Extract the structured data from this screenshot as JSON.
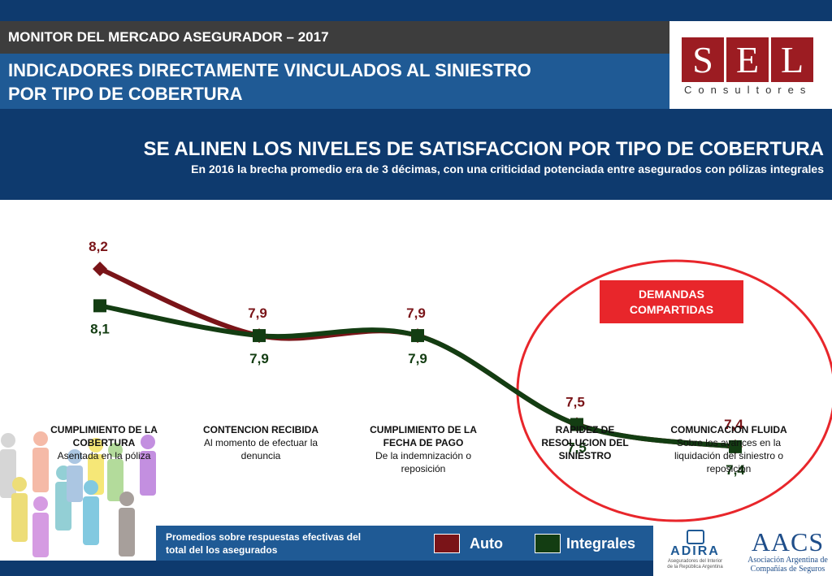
{
  "header": {
    "top_title": "MONITOR DEL MERCADO ASEGURADOR – 2017",
    "main_title_line1": "INDICADORES DIRECTAMENTE VINCULADOS AL SINIESTRO",
    "main_title_line2": "POR TIPO DE COBERTURA"
  },
  "logo": {
    "letters": [
      "S",
      "E",
      "L"
    ],
    "subtitle": "Consultores"
  },
  "band": {
    "title": "SE ALINEN LOS NIVELES DE SATISFACCION POR TIPO DE COBERTURA",
    "subtitle": "En 2016 la brecha promedio era de 3 décimas, con una criticidad potenciada entre asegurados con pólizas integrales"
  },
  "categories": [
    {
      "title": "CUMPLIMIENTO DE LA COBERTURA",
      "subtitle": "Asentada en la póliza"
    },
    {
      "title": "CONTENCION RECIBIDA",
      "subtitle": "Al momento de efectuar la denuncia"
    },
    {
      "title": "CUMPLIMIENTO DE LA FECHA DE PAGO",
      "subtitle": "De la indemnización o reposición"
    },
    {
      "title": "RAPIDEZ DE RESOLUCION DEL SINIESTRO",
      "subtitle": ""
    },
    {
      "title": "COMUNICACION FLUIDA",
      "subtitle": "Sobre los avances en la liquidación del siniestro o reposición"
    }
  ],
  "callout": {
    "line1": "DEMANDAS",
    "line2": "COMPARTIDAS"
  },
  "footer": {
    "note": "Promedios sobre respuestas efectivas del total del los asegurados",
    "legend_auto": "Auto",
    "legend_integrales": "Integrales"
  },
  "partners": {
    "adira_name": "ADIRA",
    "adira_sub1": "Aseguradores del Interior",
    "adira_sub2": "de la República Argentina",
    "aacs_name": "AACS",
    "aacs_sub1": "Asociación Argentina de",
    "aacs_sub2": "Compañías de Seguros"
  },
  "colors": {
    "auto": "#7a1418",
    "integrales": "#133d12",
    "accent_red": "#e8262b",
    "navy": "#0e3a6e",
    "blue": "#1f5a95"
  },
  "chart_data": {
    "type": "line",
    "title": "SE ALINEN LOS NIVELES DE SATISFACCION POR TIPO DE COBERTURA",
    "categories": [
      "CUMPLIMIENTO DE LA COBERTURA",
      "CONTENCION RECIBIDA",
      "CUMPLIMIENTO DE LA FECHA DE PAGO",
      "RAPIDEZ DE RESOLUCION DEL SINIESTRO",
      "COMUNICACION FLUIDA"
    ],
    "series": [
      {
        "name": "Auto",
        "values": [
          8.2,
          7.9,
          7.9,
          7.5,
          7.4
        ],
        "labels": [
          "8,2",
          "7,9",
          "7,9",
          "7,5",
          "7,4"
        ]
      },
      {
        "name": "Integrales",
        "values": [
          8.1,
          7.9,
          7.9,
          7.5,
          7.4
        ],
        "labels": [
          "8,1",
          "7,9",
          "7,9",
          "7,5",
          "7,4"
        ]
      }
    ],
    "xlabel": "",
    "ylabel": "",
    "grid": false
  }
}
